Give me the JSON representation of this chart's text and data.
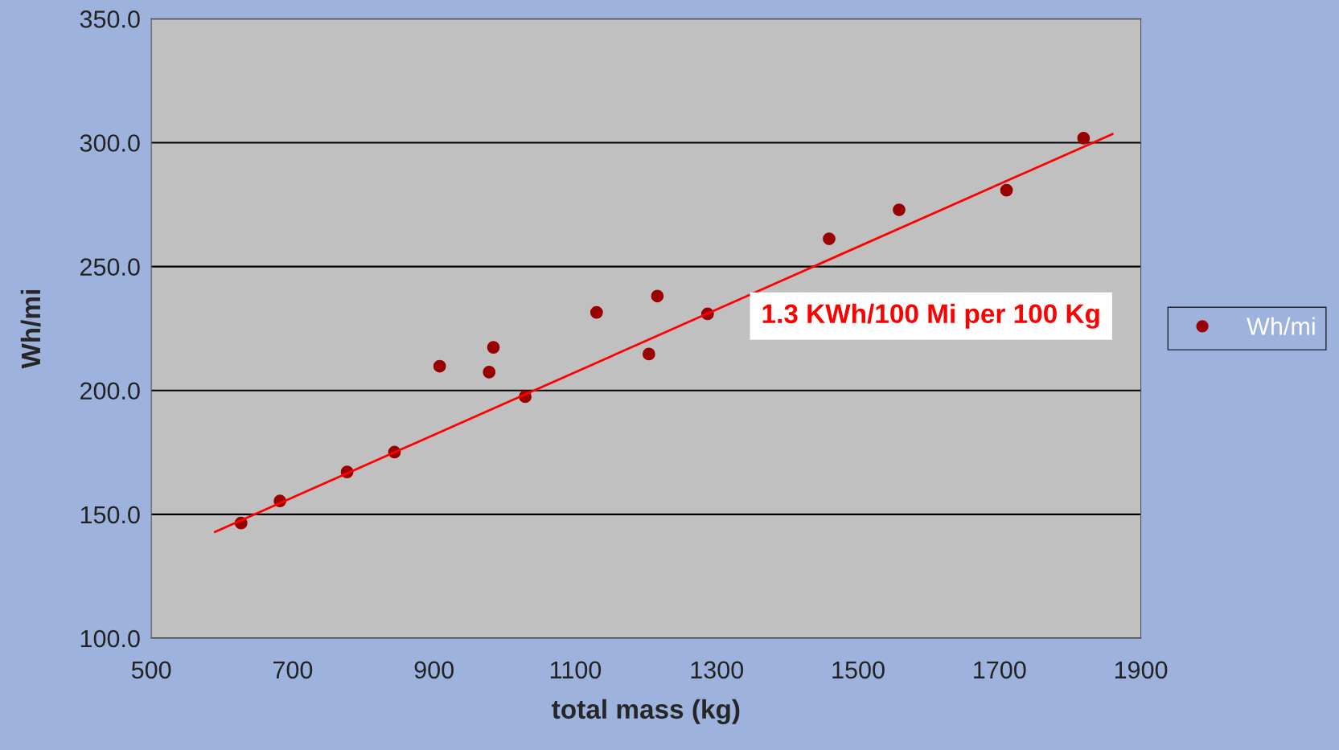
{
  "chart_data": {
    "type": "scatter",
    "xlabel": "total mass (kg)",
    "ylabel": "Wh/mi",
    "xlim": [
      500,
      1900
    ],
    "xticks": [
      500,
      700,
      900,
      1100,
      1300,
      1500,
      1700,
      1900
    ],
    "ylim": [
      100,
      350
    ],
    "yticks": [
      {
        "value": 100,
        "label": "100.0"
      },
      {
        "value": 150,
        "label": "150.0"
      },
      {
        "value": 200,
        "label": "200.0"
      },
      {
        "value": 250,
        "label": "250.0"
      },
      {
        "value": 300,
        "label": "300.0"
      },
      {
        "value": 350,
        "label": "350.0"
      }
    ],
    "grid": "y",
    "legend": "right",
    "marker": "circle",
    "annotations": [
      "1.3 KWh/100 Mi per 100 Kg"
    ],
    "series": [
      {
        "name": "Wh/mi",
        "color": "#990000",
        "x": [
          627,
          682,
          777,
          844,
          908,
          978,
          984,
          1029,
          1130,
          1204,
          1216,
          1287,
          1459,
          1558,
          1710,
          1819
        ],
        "values": [
          146.5,
          155.4,
          167.1,
          175.1,
          209.8,
          207.4,
          217.4,
          197.5,
          231.5,
          214.7,
          238.1,
          230.9,
          261.2,
          272.9,
          280.8,
          301.8
        ]
      },
      {
        "type": "line",
        "color": "#ff0000",
        "marker": "none",
        "x": [
          590,
          1860
        ],
        "values": [
          142.9,
          303.5
        ]
      }
    ]
  }
}
